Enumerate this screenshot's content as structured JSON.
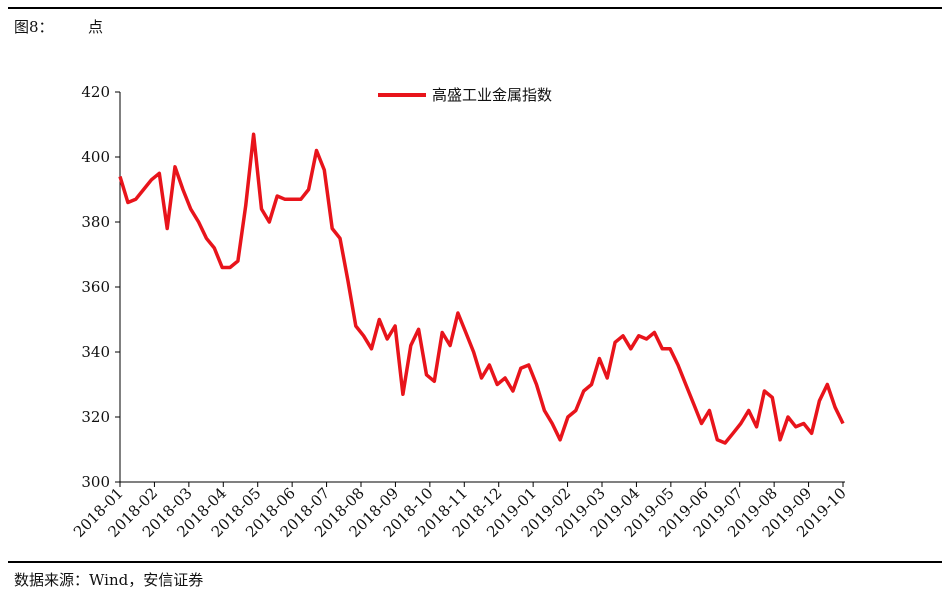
{
  "chart_data": {
    "type": "line",
    "title": "图8：",
    "subtitle": "点",
    "source": "数据来源：Wind，安信证券",
    "xticks": [
      "2018-01",
      "2018-02",
      "2018-03",
      "2018-04",
      "2018-05",
      "2018-06",
      "2018-07",
      "2018-08",
      "2018-09",
      "2018-10",
      "2018-11",
      "2018-12",
      "2019-01",
      "2019-02",
      "2019-03",
      "2019-04",
      "2019-05",
      "2019-06",
      "2019-07",
      "2019-08",
      "2019-09",
      "2019-10"
    ],
    "ylim": [
      300,
      420
    ],
    "yticks": [
      300,
      320,
      340,
      360,
      380,
      400,
      420
    ],
    "legend": "top",
    "series": [
      {
        "name": "高盛工业金属指数",
        "color": "#e8141b",
        "values": [
          394,
          386,
          387,
          390,
          393,
          395,
          378,
          397,
          390,
          384,
          380,
          375,
          372,
          366,
          366,
          368,
          385,
          407,
          384,
          380,
          388,
          387,
          387,
          387,
          390,
          402,
          396,
          378,
          375,
          362,
          348,
          345,
          341,
          350,
          344,
          348,
          327,
          342,
          347,
          333,
          331,
          346,
          342,
          352,
          346,
          340,
          332,
          336,
          330,
          332,
          328,
          335,
          336,
          330,
          322,
          318,
          313,
          320,
          322,
          328,
          330,
          338,
          332,
          343,
          345,
          341,
          345,
          344,
          346,
          341,
          341,
          336,
          330,
          324,
          318,
          322,
          313,
          312,
          315,
          318,
          322,
          317,
          328,
          326,
          313,
          320,
          317,
          318,
          315,
          325,
          330,
          323,
          318
        ]
      }
    ]
  }
}
